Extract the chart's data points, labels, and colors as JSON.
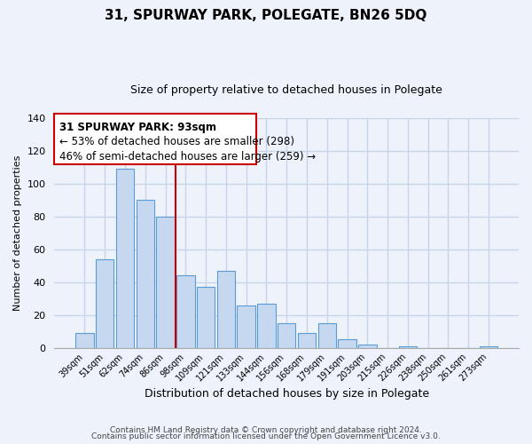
{
  "title": "31, SPURWAY PARK, POLEGATE, BN26 5DQ",
  "subtitle": "Size of property relative to detached houses in Polegate",
  "xlabel": "Distribution of detached houses by size in Polegate",
  "ylabel": "Number of detached properties",
  "bar_labels": [
    "39sqm",
    "51sqm",
    "62sqm",
    "74sqm",
    "86sqm",
    "98sqm",
    "109sqm",
    "121sqm",
    "133sqm",
    "144sqm",
    "156sqm",
    "168sqm",
    "179sqm",
    "191sqm",
    "203sqm",
    "215sqm",
    "226sqm",
    "238sqm",
    "250sqm",
    "261sqm",
    "273sqm"
  ],
  "bar_values": [
    9,
    54,
    109,
    90,
    80,
    44,
    37,
    47,
    26,
    27,
    15,
    9,
    15,
    5,
    2,
    0,
    1,
    0,
    0,
    0,
    1
  ],
  "bar_color": "#c5d8f0",
  "bar_edge_color": "#5b9bd5",
  "vline_index": 5,
  "vline_color": "#cc0000",
  "ylim": [
    0,
    140
  ],
  "yticks": [
    0,
    20,
    40,
    60,
    80,
    100,
    120,
    140
  ],
  "annotation_title": "31 SPURWAY PARK: 93sqm",
  "annotation_line1": "← 53% of detached houses are smaller (298)",
  "annotation_line2": "46% of semi-detached houses are larger (259) →",
  "footer1": "Contains HM Land Registry data © Crown copyright and database right 2024.",
  "footer2": "Contains public sector information licensed under the Open Government Licence v3.0.",
  "background_color": "#eef2fb",
  "grid_color": "#c8d4e8",
  "title_fontsize": 11,
  "subtitle_fontsize": 9,
  "annotation_fontsize": 8.5,
  "ylabel_fontsize": 8,
  "xlabel_fontsize": 9
}
